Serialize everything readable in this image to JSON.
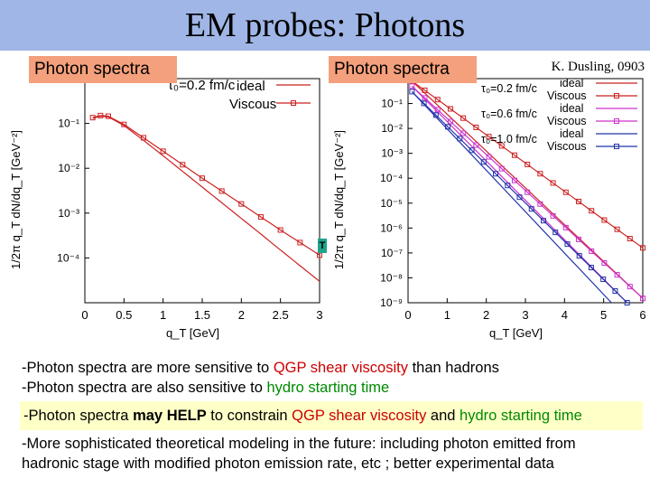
{
  "slide": {
    "title": "EM probes: Photons",
    "credit": "K. Dusling, 0903",
    "tag_left": "Photon spectra",
    "tag_right": "Photon spectra",
    "marker": "T",
    "bullets": {
      "b1_a": "-Photon spectra are more sensitive to ",
      "b1_red": "QGP shear viscosity",
      "b1_b": " than hadrons",
      "b2_a": "-Photon spectra are also sensitive to ",
      "b2_green": "hydro starting time",
      "hl_a": "-Photon spectra ",
      "hl_bold1": "may ",
      "hl_bold2": "HELP",
      "hl_b": " to constrain ",
      "hl_red": "QGP shear viscosity",
      "hl_c": " and ",
      "hl_green": "hydro starting time",
      "b3_line1": "-More sophisticated theoretical modeling in the future: including photon emitted from",
      "b3_line2": "hadronic stage with modified photon emission rate, etc ;  better experimental data"
    }
  },
  "chart_data": [
    {
      "type": "line",
      "xlabel": "q_T [GeV]",
      "ylabel": "1/2π q_T dN/dq_T [GeV⁻²]",
      "xlim": [
        0,
        3
      ],
      "ylim_log10": [
        -5,
        0
      ],
      "yscale": "log",
      "x_ticks": [
        "0",
        "0.5",
        "1",
        "1.5",
        "2",
        "2.5",
        "3"
      ],
      "y_ticks": [
        "10⁻¹",
        "10⁻²",
        "10⁻³",
        "10⁻⁴"
      ],
      "legend": {
        "header": "τ₀=0.2 fm/c",
        "entries": [
          "ideal",
          "Viscous"
        ],
        "placement": "top-right"
      },
      "color": "#cc2222",
      "series": [
        {
          "name": "ideal",
          "marker": "none",
          "x": [
            0.1,
            0.2,
            0.3,
            0.5,
            0.75,
            1.0,
            1.25,
            1.5,
            1.75,
            2.0,
            2.25,
            2.5,
            2.75,
            3.0
          ],
          "y": [
            0.13,
            0.145,
            0.14,
            0.09,
            0.042,
            0.019,
            0.0085,
            0.0038,
            0.0017,
            0.00076,
            0.00034,
            0.00015,
            6.7e-05,
            3e-05
          ]
        },
        {
          "name": "Viscous",
          "marker": "square",
          "x": [
            0.1,
            0.2,
            0.3,
            0.5,
            0.75,
            1.0,
            1.25,
            1.5,
            1.75,
            2.0,
            2.25,
            2.5,
            2.75,
            3.0
          ],
          "y": [
            0.135,
            0.15,
            0.145,
            0.095,
            0.048,
            0.024,
            0.012,
            0.006,
            0.0031,
            0.0016,
            0.00082,
            0.00042,
            0.00022,
            0.000115
          ]
        }
      ]
    },
    {
      "type": "line",
      "xlabel": "q_T [GeV]",
      "ylabel": "1/2π q_T dN/dq_T [GeV⁻²]",
      "xlim": [
        0,
        6
      ],
      "ylim_log10": [
        -9,
        0
      ],
      "yscale": "log",
      "x_ticks": [
        "0",
        "1",
        "2",
        "3",
        "4",
        "5",
        "6"
      ],
      "y_ticks": [
        "10⁻¹",
        "10⁻²",
        "10⁻³",
        "10⁻⁴",
        "10⁻⁵",
        "10⁻⁶",
        "10⁻⁷",
        "10⁻⁸",
        "10⁻⁹"
      ],
      "legend": {
        "groups": [
          {
            "header": "τ₀=0.2 fm/c",
            "entries": [
              "ideal",
              "Viscous"
            ]
          },
          {
            "header": "τ₀=0.6 fm/c",
            "entries": [
              "ideal",
              "Viscous"
            ]
          },
          {
            "header": "τ₀=1.0 fm/c",
            "entries": [
              "ideal",
              "Viscous"
            ]
          }
        ],
        "placement": "top-right"
      },
      "series": [
        {
          "name": "ideal",
          "color": "#cc2222",
          "marker": "none",
          "x": [
            0.1,
            6.0
          ],
          "y": [
            0.8,
            1.5e-09
          ]
        },
        {
          "name": "Viscous",
          "color": "#cc2222",
          "marker": "square",
          "x": [
            0.1,
            6.0
          ],
          "y": [
            0.8,
            1.6e-07
          ]
        },
        {
          "name": "ideal",
          "color": "#cc33cc",
          "marker": "none",
          "x": [
            0.1,
            5.6
          ],
          "y": [
            0.5,
            1e-09
          ]
        },
        {
          "name": "Viscous",
          "color": "#cc33cc",
          "marker": "square",
          "x": [
            0.1,
            6.0
          ],
          "y": [
            0.5,
            1.5e-09
          ]
        },
        {
          "name": "ideal",
          "color": "#2233aa",
          "marker": "none",
          "x": [
            0.1,
            5.2
          ],
          "y": [
            0.3,
            1e-09
          ]
        },
        {
          "name": "Viscous",
          "color": "#2233aa",
          "marker": "square",
          "x": [
            0.1,
            5.6
          ],
          "y": [
            0.3,
            1e-09
          ]
        }
      ]
    }
  ]
}
